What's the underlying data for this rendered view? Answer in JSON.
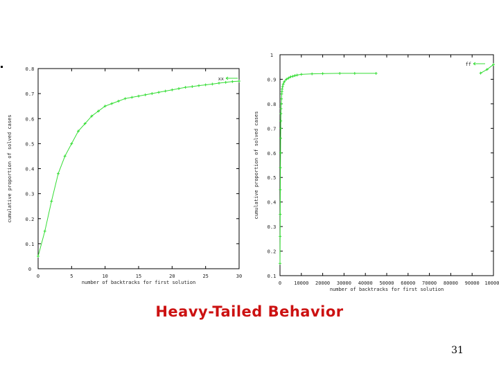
{
  "slide": {
    "title": "Heavy-Tailed Behavior",
    "page_number": "31"
  },
  "colors": {
    "series": "#33dd33",
    "axes": "#000000",
    "title": "#cc1111"
  },
  "chart_data": [
    {
      "type": "line",
      "title": "",
      "xlabel": "number of backtracks for first solution",
      "ylabel": "cumulative proportion of solved cases",
      "xlim": [
        0,
        30
      ],
      "ylim": [
        0,
        0.8
      ],
      "xticks": [
        "0",
        "5",
        "10",
        "15",
        "20",
        "25",
        "30"
      ],
      "yticks": [
        "0",
        "0.1",
        "0.2",
        "0.3",
        "0.4",
        "0.5",
        "0.6",
        "0.7",
        "0.8"
      ],
      "legend": {
        "label": "xx",
        "position": "top-right"
      },
      "series": [
        {
          "x": [
            0,
            1,
            2,
            3,
            4,
            5,
            6,
            7,
            8,
            9,
            10,
            11,
            12,
            13,
            14,
            15,
            16,
            17,
            18,
            19,
            20,
            21,
            22,
            23,
            24,
            25,
            26,
            27,
            28,
            29,
            30
          ],
          "y": [
            0.05,
            0.15,
            0.27,
            0.38,
            0.45,
            0.5,
            0.55,
            0.58,
            0.61,
            0.63,
            0.65,
            0.66,
            0.67,
            0.68,
            0.685,
            0.69,
            0.695,
            0.7,
            0.705,
            0.71,
            0.715,
            0.72,
            0.725,
            0.728,
            0.732,
            0.735,
            0.738,
            0.742,
            0.745,
            0.748,
            0.75
          ]
        }
      ]
    },
    {
      "type": "line",
      "title": "",
      "xlabel": "number of backtracks for first solution",
      "ylabel": "cumulative proportion of solved cases",
      "xlim": [
        0,
        100000
      ],
      "ylim": [
        0.1,
        1
      ],
      "xticks": [
        "0",
        "10000",
        "20000",
        "30000",
        "40000",
        "50000",
        "60000",
        "70000",
        "80000",
        "90000",
        "100000"
      ],
      "yticks": [
        "0.1",
        "0.2",
        "0.3",
        "0.4",
        "0.5",
        "0.6",
        "0.7",
        "0.8",
        "0.9",
        "1"
      ],
      "legend": {
        "label": "ff",
        "position": "top-right"
      },
      "series": [
        {
          "x": [
            0,
            50,
            100,
            150,
            200,
            250,
            300,
            350,
            400,
            450,
            500,
            600,
            700,
            800,
            900,
            1000,
            1200,
            1500,
            2000,
            3000,
            4000,
            5000,
            6000,
            7000,
            8000,
            10000,
            15000,
            20000,
            28000,
            35000,
            45000
          ],
          "y": [
            0.15,
            0.26,
            0.35,
            0.45,
            0.54,
            0.6,
            0.66,
            0.7,
            0.73,
            0.76,
            0.78,
            0.8,
            0.82,
            0.84,
            0.85,
            0.86,
            0.87,
            0.88,
            0.89,
            0.9,
            0.905,
            0.91,
            0.912,
            0.915,
            0.917,
            0.92,
            0.922,
            0.923,
            0.924,
            0.924,
            0.924
          ]
        },
        {
          "x": [
            94000,
            97000,
            100000
          ],
          "y": [
            0.925,
            0.94,
            0.96
          ]
        }
      ]
    }
  ]
}
